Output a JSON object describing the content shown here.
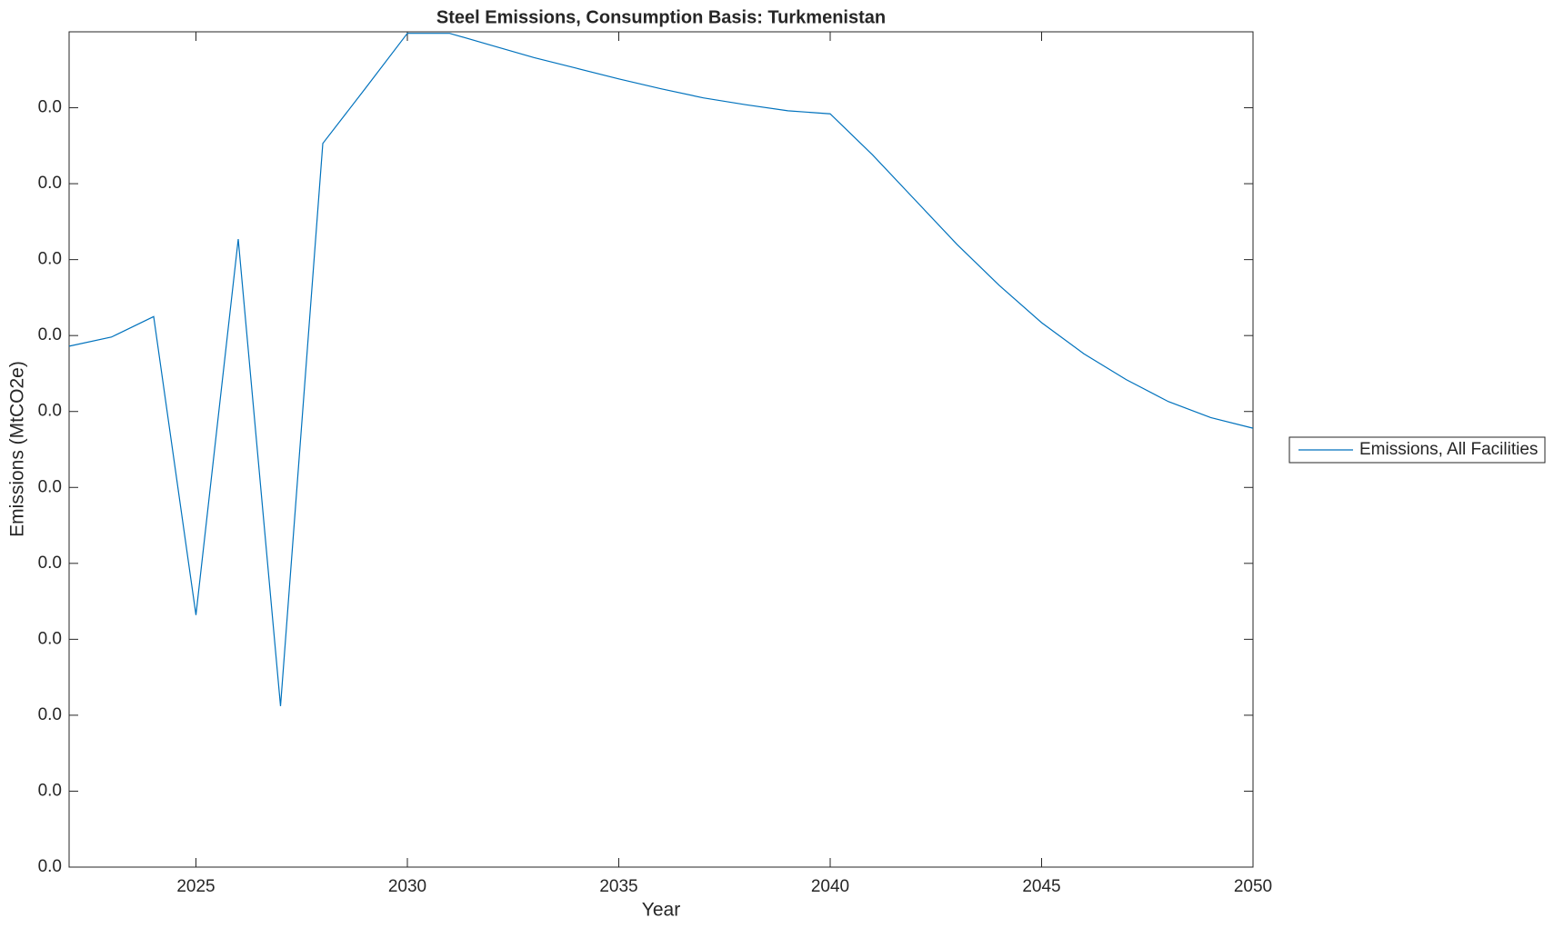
{
  "chart_data": {
    "type": "line",
    "title": "Steel Emissions, Consumption Basis: Turkmenistan",
    "x_label": "Year",
    "y_label": "Emissions (MtCO2e)",
    "x": [
      2022,
      2023,
      2024,
      2025,
      2026,
      2027,
      2028,
      2029,
      2030,
      2031,
      2032,
      2033,
      2034,
      2035,
      2036,
      2037,
      2038,
      2039,
      2040,
      2041,
      2042,
      2043,
      2044,
      2045,
      2046,
      2047,
      2048,
      2049,
      2050
    ],
    "series": [
      {
        "name": "Emissions, All Facilities",
        "color": "#0072bd",
        "values": [
          0.00686,
          0.00698,
          0.00725,
          0.00332,
          0.00827,
          0.00212,
          0.00953,
          0.01025,
          0.01098,
          0.01098,
          0.01082,
          0.01066,
          0.01052,
          0.01038,
          0.01025,
          0.01013,
          0.01004,
          0.00996,
          0.00992,
          0.00938,
          0.00879,
          0.0082,
          0.00766,
          0.00717,
          0.00676,
          0.00642,
          0.00613,
          0.00592,
          0.00578
        ]
      }
    ],
    "xlim": [
      2022,
      2050
    ],
    "xticks": [
      2025,
      2030,
      2035,
      2040,
      2045,
      2050
    ],
    "ylim": [
      0,
      0.011
    ],
    "yticks": [
      {
        "value": 0,
        "label": "0.0"
      },
      {
        "value": 0.001,
        "label": "0.0"
      },
      {
        "value": 0.002,
        "label": "0.0"
      },
      {
        "value": 0.003,
        "label": "0.0"
      },
      {
        "value": 0.004,
        "label": "0.0"
      },
      {
        "value": 0.005,
        "label": "0.0"
      },
      {
        "value": 0.006,
        "label": "0.0"
      },
      {
        "value": 0.007,
        "label": "0.0"
      },
      {
        "value": 0.008,
        "label": "0.0"
      },
      {
        "value": 0.009,
        "label": "0.0"
      },
      {
        "value": 0.01,
        "label": "0.0"
      }
    ],
    "grid": false,
    "legend": "outside-right"
  }
}
